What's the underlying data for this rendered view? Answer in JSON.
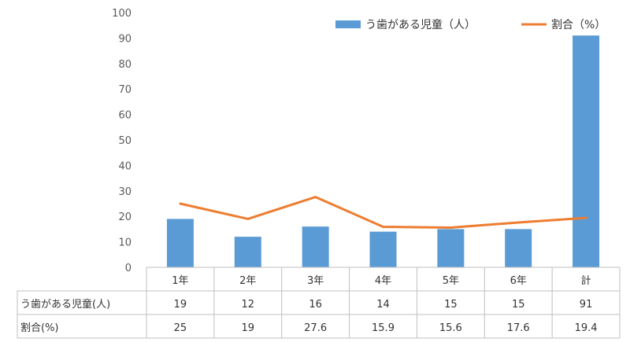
{
  "chart_data": {
    "type": "bar",
    "categories": [
      "1年",
      "2年",
      "3年",
      "4年",
      "5年",
      "6年",
      "計"
    ],
    "series": [
      {
        "name": "う歯がある児童（人）",
        "type": "bar",
        "color": "#5B9BD5",
        "values": [
          19,
          12,
          16,
          14,
          15,
          15,
          91
        ]
      },
      {
        "name": "割合（%）",
        "type": "line",
        "color": "#ED7D31",
        "values": [
          25,
          19,
          27.6,
          15.9,
          15.6,
          17.6,
          19.4
        ]
      }
    ],
    "ylim": [
      0,
      100
    ],
    "yticks": [
      0,
      10,
      20,
      30,
      40,
      50,
      60,
      70,
      80,
      90,
      100
    ],
    "grid": false,
    "legend_position": "top-right",
    "data_table": {
      "rows": [
        {
          "label": "う歯がある児童(人)",
          "values": [
            "19",
            "12",
            "16",
            "14",
            "15",
            "15",
            "91"
          ]
        },
        {
          "label": "割合(%)",
          "values": [
            "25",
            "19",
            "27.6",
            "15.9",
            "15.6",
            "17.6",
            "19.4"
          ]
        }
      ]
    }
  }
}
